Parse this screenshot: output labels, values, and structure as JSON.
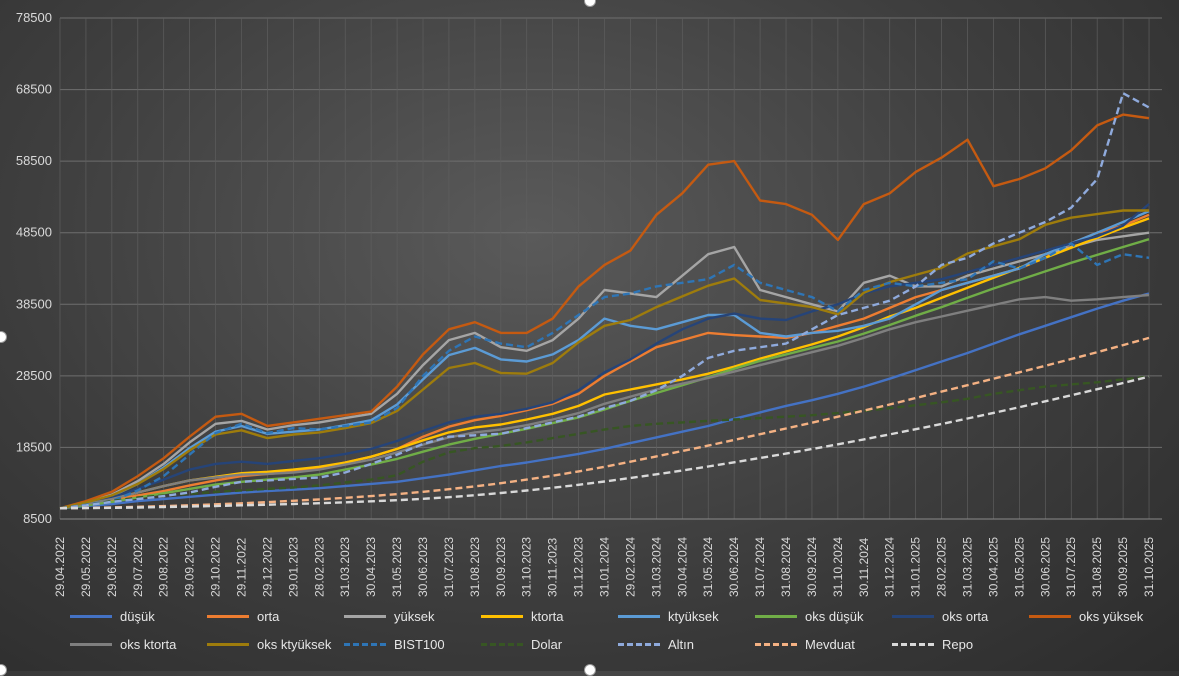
{
  "chart_data": {
    "type": "line",
    "ylim": [
      8500,
      78500
    ],
    "yticks": [
      8500,
      18500,
      28500,
      38500,
      48500,
      58500,
      68500,
      78500
    ],
    "x_labels": [
      "29.04.2022",
      "29.05.2022",
      "29.06.2022",
      "29.07.2022",
      "29.08.2022",
      "29.09.2022",
      "29.10.2022",
      "29.11.2022",
      "29.12.2022",
      "29.01.2023",
      "28.02.2023",
      "31.03.2023",
      "30.04.2023",
      "31.05.2023",
      "30.06.2023",
      "31.07.2023",
      "31.08.2023",
      "30.09.2023",
      "31.10.2023",
      "30.11.2023",
      "31.12.2023",
      "31.01.2024",
      "29.02.2024",
      "31.03.2024",
      "30.04.2024",
      "31.05.2024",
      "30.06.2024",
      "31.07.2024",
      "31.08.2024",
      "30.09.2024",
      "31.10.2024",
      "30.11.2024",
      "31.12.2024",
      "31.01.2025",
      "28.02.2025",
      "31.03.2025",
      "30.04.2025",
      "31.05.2025",
      "30.06.2025",
      "31.07.2025",
      "31.08.2025",
      "30.09.2025",
      "31.10.2025"
    ],
    "grid": true,
    "legend_position": "bottom",
    "series": [
      {
        "name": "düşük",
        "color": "#4472c4",
        "dash": false,
        "values": [
          10000,
          10300,
          10600,
          11000,
          11300,
          11600,
          11900,
          12200,
          12400,
          12600,
          12800,
          13100,
          13400,
          13700,
          14200,
          14700,
          15300,
          15900,
          16400,
          17000,
          17600,
          18300,
          19100,
          19900,
          20700,
          21500,
          22500,
          23400,
          24300,
          25100,
          26000,
          27000,
          28100,
          29300,
          30500,
          31700,
          33000,
          34300,
          35500,
          36700,
          37900,
          39000,
          40000
        ]
      },
      {
        "name": "orta",
        "color": "#ed7d31",
        "dash": false,
        "values": [
          10000,
          10500,
          11100,
          11800,
          12400,
          13200,
          13900,
          14500,
          14800,
          15100,
          15600,
          16400,
          17200,
          18300,
          20000,
          21400,
          22300,
          22900,
          23700,
          24600,
          26000,
          28500,
          30500,
          32500,
          33500,
          34500,
          34200,
          34000,
          33800,
          34500,
          35500,
          36500,
          38000,
          39500,
          40500,
          41500,
          42500,
          43500,
          45000,
          47000,
          48500,
          49500,
          51000
        ]
      },
      {
        "name": "yüksek",
        "color": "#a5a5a5",
        "dash": false,
        "values": [
          10000,
          10800,
          11900,
          13800,
          16200,
          19200,
          21800,
          22200,
          21000,
          21600,
          22000,
          22600,
          23200,
          26000,
          30000,
          33500,
          34500,
          32500,
          32000,
          33500,
          36500,
          40500,
          40000,
          39500,
          42500,
          45500,
          46500,
          40500,
          39500,
          38500,
          37500,
          41500,
          42500,
          41000,
          41000,
          42500,
          43500,
          44500,
          45500,
          46500,
          47500,
          48000,
          48500
        ]
      },
      {
        "name": "ktorta",
        "color": "#ffc000",
        "dash": false,
        "values": [
          10000,
          10600,
          11300,
          12200,
          13100,
          13900,
          14400,
          14900,
          15100,
          15400,
          15800,
          16400,
          17200,
          18300,
          19500,
          20600,
          21300,
          21700,
          22400,
          23200,
          24300,
          25900,
          26600,
          27300,
          28000,
          28800,
          29800,
          30900,
          31900,
          32900,
          34000,
          35300,
          36800,
          38000,
          39400,
          40800,
          42200,
          43600,
          45000,
          46400,
          47800,
          49200,
          50500
        ]
      },
      {
        "name": "ktyüksek",
        "color": "#5b9bd5",
        "dash": false,
        "values": [
          10000,
          10700,
          11700,
          13400,
          15700,
          18400,
          20700,
          21500,
          20400,
          20700,
          21000,
          21600,
          22300,
          24500,
          28000,
          31400,
          32400,
          30800,
          30500,
          31500,
          33500,
          36500,
          35500,
          35000,
          36000,
          37000,
          37000,
          34500,
          34000,
          34500,
          34800,
          35500,
          36500,
          38500,
          40500,
          41500,
          42500,
          43500,
          45500,
          47000,
          48500,
          50000,
          51500
        ]
      },
      {
        "name": "oks düşük",
        "color": "#70ad47",
        "dash": false,
        "values": [
          10000,
          10400,
          10900,
          11500,
          12100,
          12700,
          13300,
          13700,
          14000,
          14300,
          14700,
          15400,
          16100,
          16900,
          17900,
          18900,
          19700,
          20400,
          21100,
          21900,
          22700,
          23800,
          25000,
          26100,
          27200,
          28300,
          29500,
          30600,
          31500,
          32400,
          33300,
          34400,
          35600,
          36900,
          38100,
          39400,
          40700,
          41900,
          43100,
          44300,
          45400,
          46500,
          47600
        ]
      },
      {
        "name": "oks orta",
        "color": "#264478",
        "dash": false,
        "values": [
          10000,
          10700,
          11500,
          12700,
          14000,
          15400,
          16200,
          16500,
          16200,
          16600,
          17000,
          17600,
          18300,
          19400,
          20800,
          22000,
          22800,
          23200,
          23900,
          24800,
          26500,
          29000,
          30800,
          33000,
          35000,
          36500,
          37200,
          36500,
          36300,
          37500,
          38500,
          40000,
          41000,
          41500,
          42000,
          43000,
          44000,
          45000,
          46000,
          47000,
          48000,
          49500,
          52500
        ]
      },
      {
        "name": "oks yüksek",
        "color": "#c55a11",
        "dash": false,
        "values": [
          10000,
          11000,
          12300,
          14500,
          17000,
          20000,
          22800,
          23200,
          21500,
          22000,
          22500,
          23000,
          23500,
          27000,
          31500,
          35000,
          36000,
          34500,
          34500,
          36500,
          41000,
          44000,
          46000,
          51000,
          54000,
          58000,
          58500,
          53000,
          52500,
          51000,
          47500,
          52500,
          54000,
          57000,
          59000,
          61500,
          55000,
          56000,
          57500,
          60000,
          63500,
          65000,
          64500
        ]
      },
      {
        "name": "oks ktorta",
        "color": "#7f7f7f",
        "dash": false,
        "values": [
          10000,
          10600,
          11300,
          12200,
          13100,
          13900,
          14300,
          14700,
          14800,
          15000,
          15400,
          16100,
          16800,
          17800,
          18900,
          19900,
          20600,
          21000,
          21600,
          22400,
          23300,
          24600,
          25600,
          26600,
          27400,
          28200,
          29100,
          30000,
          30900,
          31800,
          32700,
          33800,
          35000,
          36000,
          36800,
          37600,
          38400,
          39200,
          39500,
          39000,
          39200,
          39500,
          39800
        ]
      },
      {
        "name": "oks ktyüksek",
        "color": "#9e7c0c",
        "dash": false,
        "values": [
          10000,
          10800,
          11800,
          13400,
          15500,
          18100,
          20300,
          20900,
          19800,
          20300,
          20600,
          21200,
          21900,
          23600,
          26600,
          29600,
          30300,
          28900,
          28800,
          30300,
          33200,
          35500,
          36300,
          38100,
          39600,
          41100,
          42100,
          39100,
          38600,
          38100,
          37100,
          40100,
          41600,
          42600,
          43600,
          45600,
          46600,
          47600,
          49600,
          50600,
          51100,
          51600,
          51600
        ]
      },
      {
        "name": "BIST100",
        "color": "#2e75b6",
        "dash": true,
        "values": [
          10000,
          10500,
          11000,
          12500,
          14500,
          17500,
          20500,
          21800,
          20500,
          21200,
          21000,
          21500,
          22000,
          24000,
          28500,
          32000,
          34000,
          33000,
          32500,
          34500,
          37000,
          39500,
          40000,
          41000,
          41500,
          42000,
          44000,
          41500,
          40500,
          39500,
          37500,
          40500,
          41500,
          41000,
          41500,
          42000,
          44500,
          43500,
          45000,
          47000,
          44000,
          45500,
          45000
        ]
      },
      {
        "name": "Dolar",
        "color": "#375623",
        "dash": true,
        "values": [
          10000,
          10400,
          11000,
          11500,
          11800,
          12000,
          12300,
          12500,
          12700,
          12900,
          13200,
          13600,
          14000,
          14600,
          16500,
          17800,
          18400,
          18700,
          19200,
          19800,
          20400,
          21000,
          21500,
          21800,
          22000,
          22200,
          22400,
          22600,
          22800,
          23000,
          23300,
          23600,
          24000,
          24400,
          24800,
          25300,
          26000,
          26500,
          27000,
          27300,
          27600,
          28000,
          28400
        ]
      },
      {
        "name": "Altın",
        "color": "#8faadc",
        "dash": true,
        "values": [
          10000,
          10400,
          10900,
          11300,
          11700,
          12200,
          13000,
          13700,
          13900,
          14100,
          14300,
          15000,
          16200,
          17500,
          19000,
          20000,
          20200,
          20400,
          21200,
          22000,
          22800,
          24000,
          25000,
          26500,
          28500,
          31000,
          32000,
          32500,
          33000,
          35000,
          37000,
          38000,
          39000,
          41000,
          44000,
          45000,
          47000,
          48500,
          50000,
          52000,
          56000,
          68000,
          66000
        ]
      },
      {
        "name": "Mevduat",
        "color": "#f4b183",
        "dash": true,
        "values": [
          10000,
          10050,
          10120,
          10200,
          10300,
          10420,
          10560,
          10700,
          10860,
          11040,
          11240,
          11460,
          11700,
          11980,
          12300,
          12660,
          13050,
          13500,
          14000,
          14550,
          15150,
          15800,
          16500,
          17250,
          18000,
          18750,
          19550,
          20350,
          21150,
          21950,
          22800,
          23650,
          24500,
          25400,
          26300,
          27200,
          28100,
          29000,
          29900,
          30850,
          31800,
          32800,
          33800
        ]
      },
      {
        "name": "Repo",
        "color": "#d9d9d9",
        "dash": true,
        "values": [
          10000,
          10020,
          10060,
          10110,
          10170,
          10240,
          10320,
          10410,
          10500,
          10600,
          10710,
          10830,
          10970,
          11130,
          11320,
          11550,
          11820,
          12130,
          12480,
          12860,
          13280,
          13740,
          14230,
          14740,
          15280,
          15840,
          16420,
          17020,
          17640,
          18280,
          18940,
          19620,
          20320,
          21040,
          21780,
          22540,
          23320,
          24120,
          24940,
          25780,
          26640,
          27500,
          28400
        ]
      }
    ]
  }
}
